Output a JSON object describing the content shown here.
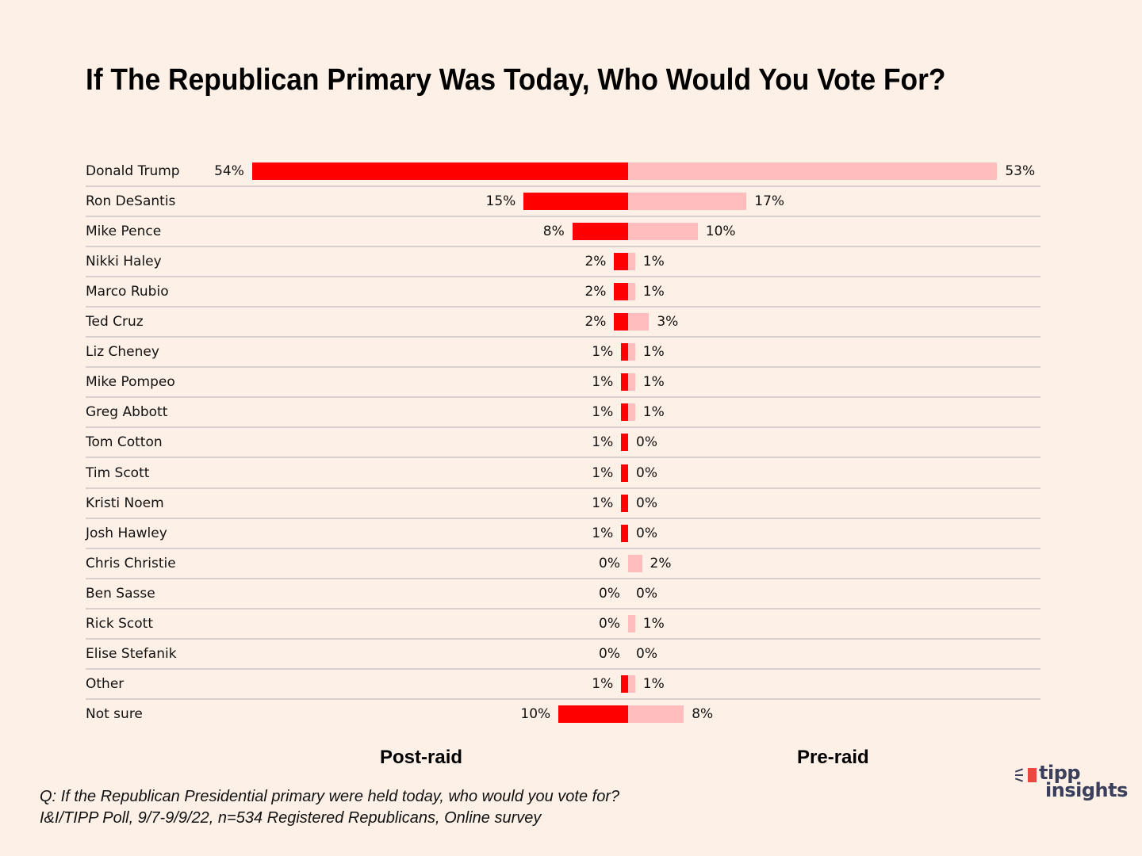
{
  "chart_data": {
    "type": "bar",
    "orientation": "horizontal-diverging",
    "title": "If The Republican Primary Was Today, Who Would You Vote For?",
    "categories": [
      "Donald Trump",
      "Ron DeSantis",
      "Mike Pence",
      "Nikki Haley",
      "Marco Rubio",
      "Ted Cruz",
      "Liz Cheney",
      "Mike Pompeo",
      "Greg Abbott",
      "Tom Cotton",
      "Tim Scott",
      "Kristi Noem",
      "Josh Hawley",
      "Chris Christie",
      "Ben Sasse",
      "Rick Scott",
      "Elise Stefanik",
      "Other",
      "Not sure"
    ],
    "series": [
      {
        "name": "Post-raid",
        "color": "#ff0000",
        "side": "left",
        "values": [
          54,
          15,
          8,
          2,
          2,
          2,
          1,
          1,
          1,
          1,
          1,
          1,
          1,
          0,
          0,
          0,
          0,
          1,
          10
        ]
      },
      {
        "name": "Pre-raid",
        "color": "#ffbdbd",
        "side": "right",
        "values": [
          53,
          17,
          10,
          1,
          1,
          3,
          1,
          1,
          1,
          0,
          0,
          0,
          0,
          2,
          0,
          1,
          0,
          1,
          8
        ]
      }
    ],
    "value_format": "percent",
    "xlabel": "",
    "ylabel": "",
    "grid": false,
    "legend": "bottom"
  },
  "labels": {
    "post": "Post-raid",
    "pre": "Pre-raid"
  },
  "footnote": {
    "line1": "Q:  If the Republican Presidential primary were held today, who would you vote for?",
    "line2": "I&I/TIPP Poll, 9/7-9/9/22, n=534 Registered Republicans, Online survey"
  },
  "logo": {
    "line1": "tipp",
    "line2": "insights",
    "icon": "megaphone-flag-icon"
  }
}
